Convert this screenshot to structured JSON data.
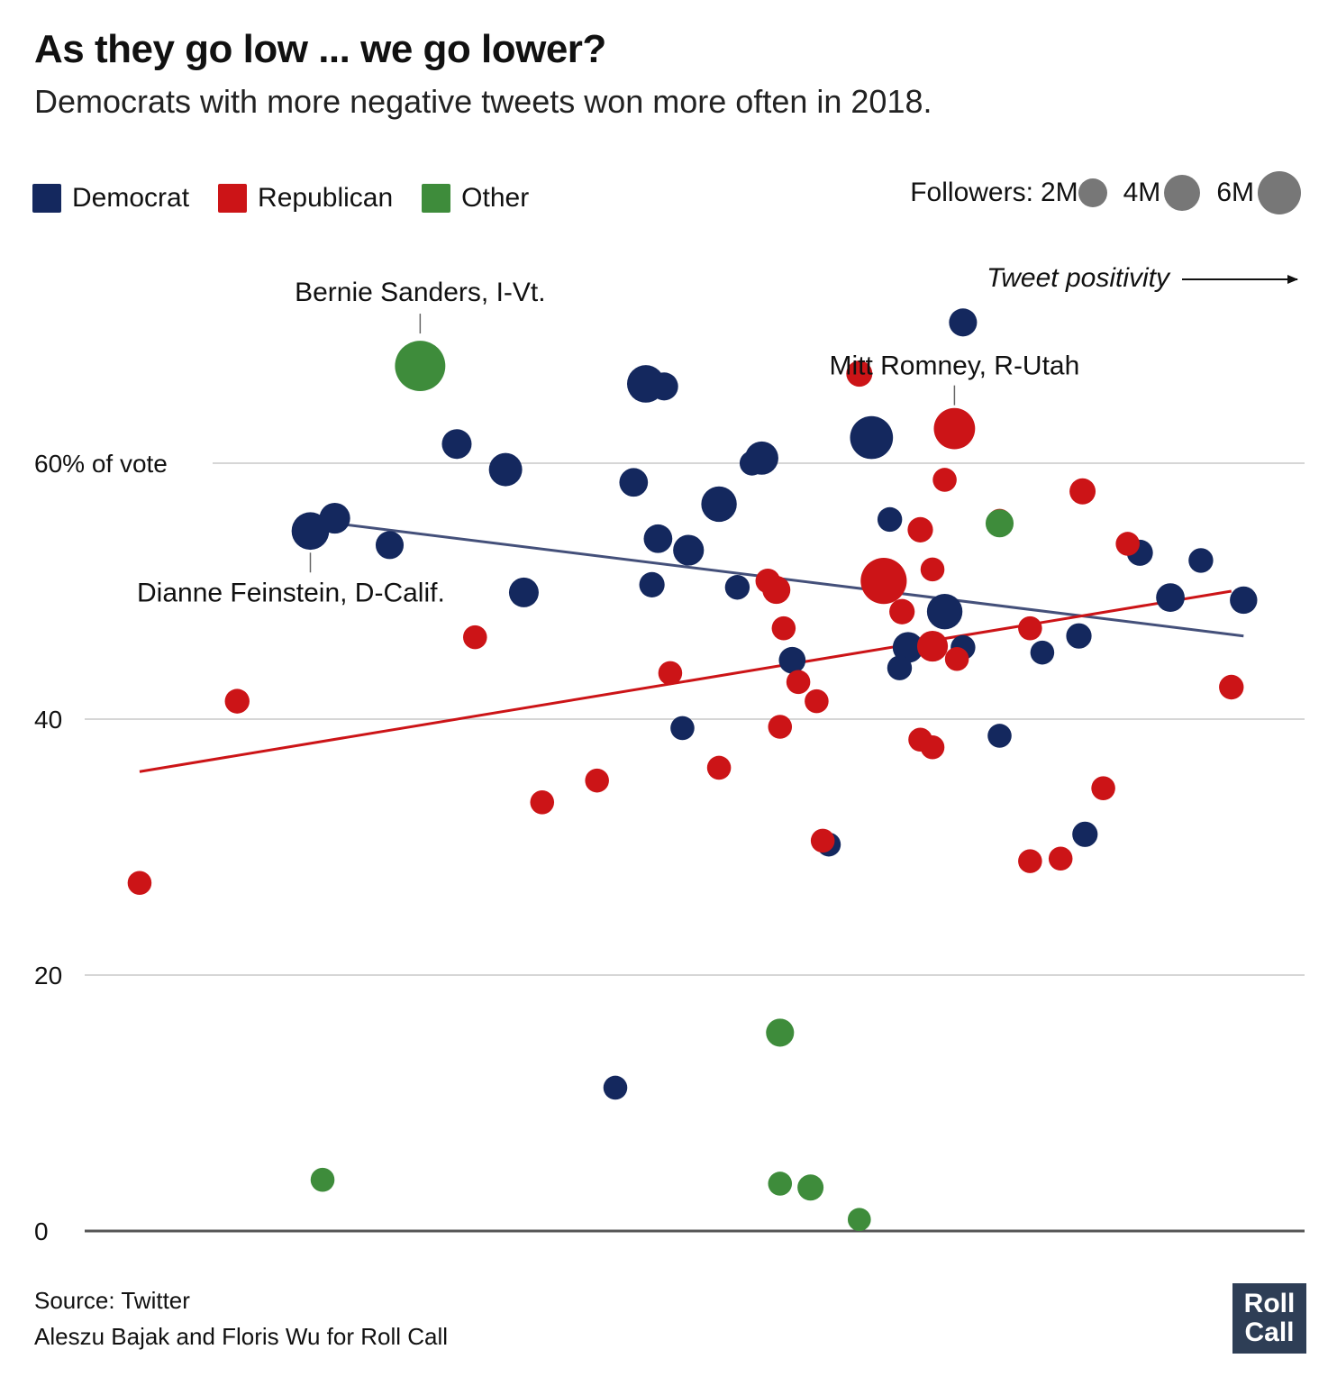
{
  "title": "As they go low ... we go lower?",
  "subtitle": "Democrats with more negative tweets won more often in 2018.",
  "legend": {
    "parties": [
      {
        "label": "Democrat",
        "color": "#14285e"
      },
      {
        "label": "Republican",
        "color": "#cc1417"
      },
      {
        "label": "Other",
        "color": "#3e8c3b"
      }
    ],
    "followers_label": "Followers:",
    "sizes": [
      {
        "label": "2M",
        "value": 2000000
      },
      {
        "label": "4M",
        "value": 4000000
      },
      {
        "label": "6M",
        "value": 6000000
      }
    ]
  },
  "chart_data": {
    "type": "scatter",
    "title": "As they go low ... we go lower?",
    "subtitle": "Democrats with more negative tweets won more often in 2018.",
    "xlabel": "Tweet positivity",
    "ylabel": "60% of vote",
    "xlim": [
      0,
      100
    ],
    "ylim": [
      0,
      70
    ],
    "yticks": [
      {
        "value": 60,
        "label": "60% of vote"
      },
      {
        "value": 40,
        "label": "40"
      },
      {
        "value": 20,
        "label": "20"
      },
      {
        "value": 0,
        "label": "0"
      }
    ],
    "grid": true,
    "legend_position": "top-left",
    "annotations": [
      {
        "text": "Bernie Sanders, I-Vt.",
        "x": 27.5,
        "y": 67.6,
        "position": "above"
      },
      {
        "text": "Mitt Romney, R-Utah",
        "x": 71.3,
        "y": 62.7,
        "position": "above"
      },
      {
        "text": "Dianne Feinstein, D-Calif.",
        "x": 18.5,
        "y": 54.7,
        "position": "below"
      }
    ],
    "trendlines": [
      {
        "party": "Democrat",
        "x": [
          20.5,
          95.0
        ],
        "y": [
          55.3,
          46.5
        ]
      },
      {
        "party": "Republican",
        "x": [
          4.5,
          94.0
        ],
        "y": [
          35.9,
          50.0
        ]
      }
    ],
    "series": [
      {
        "name": "Democrat",
        "points": [
          {
            "x": 72.0,
            "y": 71.0,
            "f": 1.5
          },
          {
            "x": 46.0,
            "y": 66.2,
            "f": 3.5
          },
          {
            "x": 47.5,
            "y": 66.0,
            "f": 1.5
          },
          {
            "x": 64.5,
            "y": 62.0,
            "f": 5.0
          },
          {
            "x": 30.5,
            "y": 61.5,
            "f": 1.8
          },
          {
            "x": 55.5,
            "y": 60.4,
            "f": 2.5
          },
          {
            "x": 54.7,
            "y": 60.0,
            "f": 1.0
          },
          {
            "x": 34.5,
            "y": 59.5,
            "f": 2.5
          },
          {
            "x": 45.0,
            "y": 58.5,
            "f": 1.6
          },
          {
            "x": 52.0,
            "y": 56.8,
            "f": 3.0
          },
          {
            "x": 66.0,
            "y": 55.6,
            "f": 1.0
          },
          {
            "x": 20.5,
            "y": 55.7,
            "f": 2.0
          },
          {
            "x": 18.5,
            "y": 54.7,
            "f": 3.5
          },
          {
            "x": 25.0,
            "y": 53.6,
            "f": 1.5
          },
          {
            "x": 47.0,
            "y": 54.1,
            "f": 1.6
          },
          {
            "x": 49.5,
            "y": 53.2,
            "f": 2.0
          },
          {
            "x": 86.5,
            "y": 53.0,
            "f": 1.2
          },
          {
            "x": 91.5,
            "y": 52.4,
            "f": 1.0
          },
          {
            "x": 46.5,
            "y": 50.5,
            "f": 1.1
          },
          {
            "x": 53.5,
            "y": 50.3,
            "f": 1.0
          },
          {
            "x": 36.0,
            "y": 49.9,
            "f": 1.8
          },
          {
            "x": 89.0,
            "y": 49.5,
            "f": 1.6
          },
          {
            "x": 95.0,
            "y": 49.3,
            "f": 1.4
          },
          {
            "x": 70.5,
            "y": 48.4,
            "f": 3.0
          },
          {
            "x": 81.5,
            "y": 46.5,
            "f": 1.1
          },
          {
            "x": 67.5,
            "y": 45.6,
            "f": 2.0
          },
          {
            "x": 72.0,
            "y": 45.6,
            "f": 1.0
          },
          {
            "x": 78.5,
            "y": 45.2,
            "f": 0.9
          },
          {
            "x": 58.0,
            "y": 44.6,
            "f": 1.3
          },
          {
            "x": 66.8,
            "y": 44.0,
            "f": 1.0
          },
          {
            "x": 49.0,
            "y": 39.3,
            "f": 0.9
          },
          {
            "x": 75.0,
            "y": 38.7,
            "f": 0.9
          },
          {
            "x": 82.0,
            "y": 31.0,
            "f": 1.1
          },
          {
            "x": 61.0,
            "y": 30.2,
            "f": 0.9
          },
          {
            "x": 43.5,
            "y": 11.2,
            "f": 0.9
          }
        ]
      },
      {
        "name": "Republican",
        "points": [
          {
            "x": 63.5,
            "y": 67.0,
            "f": 1.2
          },
          {
            "x": 71.3,
            "y": 62.7,
            "f": 4.5
          },
          {
            "x": 70.5,
            "y": 58.7,
            "f": 0.9
          },
          {
            "x": 81.8,
            "y": 57.8,
            "f": 1.2
          },
          {
            "x": 75.0,
            "y": 55.5,
            "f": 0.9
          },
          {
            "x": 68.5,
            "y": 54.8,
            "f": 1.1
          },
          {
            "x": 85.5,
            "y": 53.7,
            "f": 0.9
          },
          {
            "x": 69.5,
            "y": 51.7,
            "f": 0.9
          },
          {
            "x": 65.5,
            "y": 50.8,
            "f": 6.0
          },
          {
            "x": 56.0,
            "y": 50.8,
            "f": 1.0
          },
          {
            "x": 56.7,
            "y": 50.1,
            "f": 1.5
          },
          {
            "x": 67.0,
            "y": 48.4,
            "f": 1.1
          },
          {
            "x": 57.3,
            "y": 47.1,
            "f": 0.9
          },
          {
            "x": 77.5,
            "y": 47.1,
            "f": 0.9
          },
          {
            "x": 32.0,
            "y": 46.4,
            "f": 0.9
          },
          {
            "x": 69.5,
            "y": 45.7,
            "f": 2.0
          },
          {
            "x": 71.5,
            "y": 44.7,
            "f": 0.9
          },
          {
            "x": 48.0,
            "y": 43.6,
            "f": 0.9
          },
          {
            "x": 58.5,
            "y": 42.9,
            "f": 0.9
          },
          {
            "x": 94.0,
            "y": 42.5,
            "f": 1.0
          },
          {
            "x": 12.5,
            "y": 41.4,
            "f": 1.0
          },
          {
            "x": 60.0,
            "y": 41.4,
            "f": 0.9
          },
          {
            "x": 57.0,
            "y": 39.4,
            "f": 0.9
          },
          {
            "x": 68.5,
            "y": 38.4,
            "f": 0.9
          },
          {
            "x": 69.5,
            "y": 37.8,
            "f": 0.9
          },
          {
            "x": 52.0,
            "y": 36.2,
            "f": 0.9
          },
          {
            "x": 42.0,
            "y": 35.2,
            "f": 0.9
          },
          {
            "x": 83.5,
            "y": 34.6,
            "f": 0.9
          },
          {
            "x": 37.5,
            "y": 33.5,
            "f": 0.9
          },
          {
            "x": 60.5,
            "y": 30.5,
            "f": 0.9
          },
          {
            "x": 80.0,
            "y": 29.1,
            "f": 0.9
          },
          {
            "x": 77.5,
            "y": 28.9,
            "f": 0.9
          },
          {
            "x": 4.5,
            "y": 27.2,
            "f": 0.9
          }
        ]
      },
      {
        "name": "Other",
        "points": [
          {
            "x": 27.5,
            "y": 67.6,
            "f": 7.5
          },
          {
            "x": 75.0,
            "y": 55.3,
            "f": 1.5
          },
          {
            "x": 57.0,
            "y": 15.5,
            "f": 1.5
          },
          {
            "x": 19.5,
            "y": 4.0,
            "f": 0.9
          },
          {
            "x": 57.0,
            "y": 3.7,
            "f": 0.9
          },
          {
            "x": 59.5,
            "y": 3.4,
            "f": 1.2
          },
          {
            "x": 63.5,
            "y": 0.9,
            "f": 0.8
          }
        ]
      }
    ]
  },
  "footer": {
    "source": "Source: Twitter",
    "credit": "Aleszu Bajak and Floris Wu for Roll Call"
  },
  "logo": {
    "line1": "Roll",
    "line2": "Call"
  }
}
